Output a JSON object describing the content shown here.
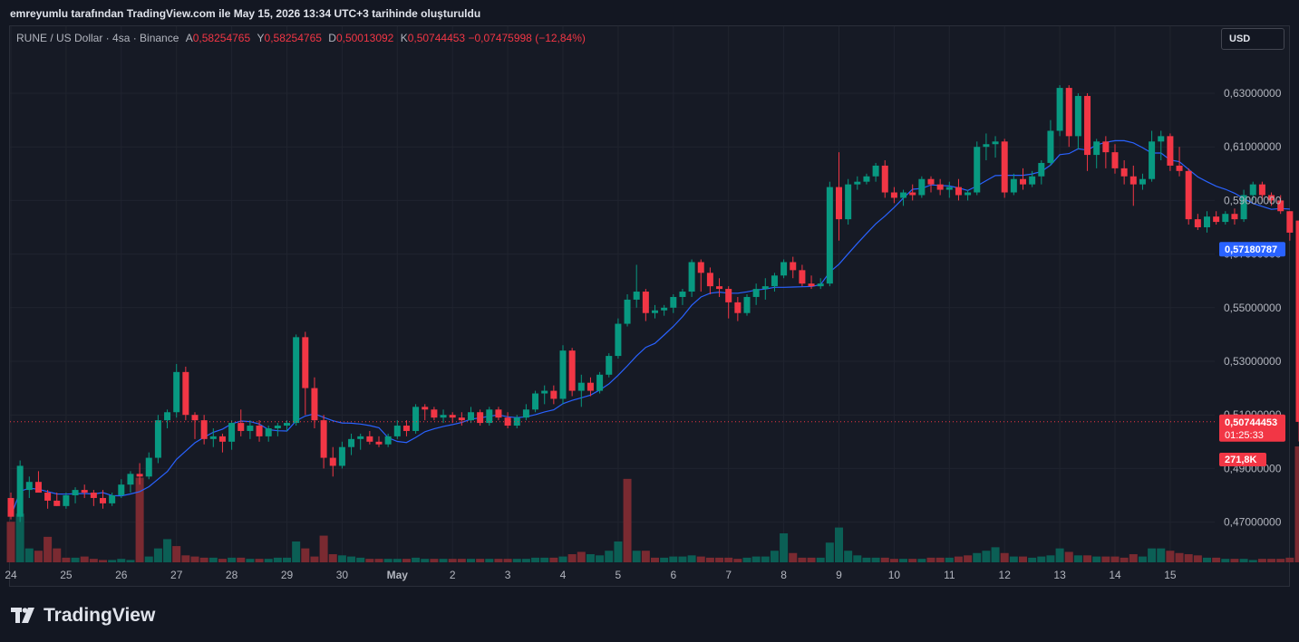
{
  "header": {
    "title": "emreyumlu tarafından TradingView.com ile May 15, 2026 13:34 UTC+3 tarihinde oluşturuldu"
  },
  "legend": {
    "symbol": "RUNE / US Dollar · 4sa · Binance",
    "open_label": "A",
    "open": "0,58254765",
    "high_label": "Y",
    "high": "0,58254765",
    "low_label": "D",
    "low": "0,50013092",
    "close_label": "K",
    "close": "0,50744453",
    "change": "−0,07475998 (−12,84%)"
  },
  "currency_button": {
    "label": "USD"
  },
  "price_badges": {
    "ma_value": "0,57180787",
    "last_price": "0,50744453",
    "countdown": "01:25:33",
    "volume": "271,8K"
  },
  "brand": {
    "name": "TradingView"
  },
  "colors": {
    "up": "#089981",
    "down": "#f23645",
    "ma": "#2962ff",
    "background": "#161a25"
  },
  "chart_data": {
    "type": "candlestick",
    "y_axis": {
      "range": [
        0.455,
        0.655
      ],
      "ticks": [
        0.47,
        0.49,
        0.51,
        0.53,
        0.55,
        0.57,
        0.59,
        0.61,
        0.63
      ],
      "tick_labels": [
        "0,47000000",
        "0,49000000",
        "0,51000000",
        "0,53000000",
        "0,55000000",
        "0,57000000",
        "0,59000000",
        "0,61000000",
        "0,63000000"
      ]
    },
    "x_axis": {
      "tick_labels": [
        "24",
        "25",
        "26",
        "27",
        "28",
        "29",
        "30",
        "May",
        "2",
        "3",
        "4",
        "5",
        "6",
        "7",
        "8",
        "9",
        "10",
        "11",
        "12",
        "13",
        "14",
        "15"
      ]
    },
    "candles_per_day": 6,
    "last_price_line": 0.50744453,
    "ohlc": [
      [
        0.479,
        0.481,
        0.471,
        0.472
      ],
      [
        0.472,
        0.493,
        0.47,
        0.491
      ],
      [
        0.482,
        0.487,
        0.479,
        0.485
      ],
      [
        0.485,
        0.489,
        0.482,
        0.481
      ],
      [
        0.481,
        0.482,
        0.475,
        0.478
      ],
      [
        0.478,
        0.481,
        0.476,
        0.476
      ],
      [
        0.476,
        0.481,
        0.475,
        0.48
      ],
      [
        0.48,
        0.483,
        0.477,
        0.482
      ],
      [
        0.482,
        0.484,
        0.479,
        0.481
      ],
      [
        0.481,
        0.482,
        0.476,
        0.479
      ],
      [
        0.479,
        0.482,
        0.475,
        0.477
      ],
      [
        0.477,
        0.481,
        0.476,
        0.48
      ],
      [
        0.48,
        0.486,
        0.479,
        0.484
      ],
      [
        0.484,
        0.489,
        0.481,
        0.488
      ],
      [
        0.488,
        0.492,
        0.484,
        0.487
      ],
      [
        0.487,
        0.496,
        0.486,
        0.494
      ],
      [
        0.494,
        0.51,
        0.492,
        0.508
      ],
      [
        0.508,
        0.512,
        0.505,
        0.511
      ],
      [
        0.511,
        0.529,
        0.509,
        0.526
      ],
      [
        0.526,
        0.528,
        0.508,
        0.51
      ],
      [
        0.51,
        0.511,
        0.501,
        0.508
      ],
      [
        0.508,
        0.51,
        0.499,
        0.501
      ],
      [
        0.501,
        0.505,
        0.498,
        0.502
      ],
      [
        0.502,
        0.503,
        0.496,
        0.5
      ],
      [
        0.5,
        0.508,
        0.497,
        0.507
      ],
      [
        0.507,
        0.512,
        0.502,
        0.504
      ],
      [
        0.504,
        0.508,
        0.501,
        0.506
      ],
      [
        0.506,
        0.508,
        0.5,
        0.502
      ],
      [
        0.502,
        0.506,
        0.5,
        0.505
      ],
      [
        0.505,
        0.507,
        0.502,
        0.506
      ],
      [
        0.506,
        0.508,
        0.504,
        0.507
      ],
      [
        0.507,
        0.54,
        0.506,
        0.539
      ],
      [
        0.539,
        0.541,
        0.51,
        0.52
      ],
      [
        0.52,
        0.524,
        0.505,
        0.508
      ],
      [
        0.508,
        0.51,
        0.49,
        0.494
      ],
      [
        0.494,
        0.498,
        0.487,
        0.491
      ],
      [
        0.491,
        0.5,
        0.49,
        0.498
      ],
      [
        0.498,
        0.503,
        0.495,
        0.501
      ],
      [
        0.501,
        0.503,
        0.497,
        0.502
      ],
      [
        0.502,
        0.504,
        0.499,
        0.5
      ],
      [
        0.5,
        0.502,
        0.498,
        0.499
      ],
      [
        0.499,
        0.503,
        0.498,
        0.502
      ],
      [
        0.502,
        0.508,
        0.501,
        0.506
      ],
      [
        0.506,
        0.508,
        0.502,
        0.504
      ],
      [
        0.504,
        0.514,
        0.503,
        0.513
      ],
      [
        0.513,
        0.514,
        0.508,
        0.512
      ],
      [
        0.512,
        0.513,
        0.508,
        0.509
      ],
      [
        0.509,
        0.512,
        0.507,
        0.51
      ],
      [
        0.51,
        0.511,
        0.507,
        0.509
      ],
      [
        0.509,
        0.511,
        0.506,
        0.508
      ],
      [
        0.508,
        0.513,
        0.507,
        0.511
      ],
      [
        0.511,
        0.512,
        0.506,
        0.507
      ],
      [
        0.507,
        0.513,
        0.506,
        0.512
      ],
      [
        0.512,
        0.513,
        0.508,
        0.509
      ],
      [
        0.509,
        0.511,
        0.505,
        0.506
      ],
      [
        0.506,
        0.51,
        0.505,
        0.509
      ],
      [
        0.509,
        0.514,
        0.508,
        0.512
      ],
      [
        0.512,
        0.519,
        0.511,
        0.518
      ],
      [
        0.518,
        0.521,
        0.514,
        0.519
      ],
      [
        0.519,
        0.521,
        0.514,
        0.516
      ],
      [
        0.516,
        0.536,
        0.514,
        0.534
      ],
      [
        0.534,
        0.535,
        0.517,
        0.519
      ],
      [
        0.519,
        0.525,
        0.513,
        0.522
      ],
      [
        0.522,
        0.524,
        0.517,
        0.519
      ],
      [
        0.519,
        0.526,
        0.518,
        0.525
      ],
      [
        0.525,
        0.533,
        0.524,
        0.532
      ],
      [
        0.532,
        0.546,
        0.531,
        0.544
      ],
      [
        0.544,
        0.555,
        0.543,
        0.553
      ],
      [
        0.553,
        0.566,
        0.55,
        0.556
      ],
      [
        0.556,
        0.557,
        0.545,
        0.548
      ],
      [
        0.548,
        0.551,
        0.546,
        0.549
      ],
      [
        0.549,
        0.551,
        0.547,
        0.55
      ],
      [
        0.55,
        0.555,
        0.548,
        0.554
      ],
      [
        0.554,
        0.557,
        0.551,
        0.556
      ],
      [
        0.556,
        0.568,
        0.554,
        0.567
      ],
      [
        0.567,
        0.568,
        0.556,
        0.563
      ],
      [
        0.563,
        0.565,
        0.555,
        0.558
      ],
      [
        0.558,
        0.561,
        0.554,
        0.557
      ],
      [
        0.557,
        0.558,
        0.546,
        0.552
      ],
      [
        0.552,
        0.554,
        0.545,
        0.548
      ],
      [
        0.548,
        0.555,
        0.547,
        0.554
      ],
      [
        0.554,
        0.559,
        0.551,
        0.557
      ],
      [
        0.557,
        0.561,
        0.553,
        0.558
      ],
      [
        0.558,
        0.563,
        0.556,
        0.562
      ],
      [
        0.562,
        0.568,
        0.561,
        0.567
      ],
      [
        0.567,
        0.569,
        0.561,
        0.564
      ],
      [
        0.564,
        0.566,
        0.558,
        0.559
      ],
      [
        0.559,
        0.562,
        0.557,
        0.558
      ],
      [
        0.558,
        0.561,
        0.557,
        0.559
      ],
      [
        0.559,
        0.597,
        0.558,
        0.595
      ],
      [
        0.595,
        0.608,
        0.575,
        0.583
      ],
      [
        0.583,
        0.598,
        0.581,
        0.596
      ],
      [
        0.596,
        0.599,
        0.594,
        0.597
      ],
      [
        0.597,
        0.6,
        0.596,
        0.599
      ],
      [
        0.599,
        0.604,
        0.597,
        0.603
      ],
      [
        0.603,
        0.605,
        0.591,
        0.593
      ],
      [
        0.593,
        0.595,
        0.589,
        0.591
      ],
      [
        0.591,
        0.594,
        0.588,
        0.593
      ],
      [
        0.593,
        0.596,
        0.59,
        0.592
      ],
      [
        0.592,
        0.599,
        0.591,
        0.598
      ],
      [
        0.598,
        0.599,
        0.593,
        0.596
      ],
      [
        0.596,
        0.598,
        0.592,
        0.594
      ],
      [
        0.594,
        0.597,
        0.591,
        0.595
      ],
      [
        0.595,
        0.598,
        0.59,
        0.592
      ],
      [
        0.592,
        0.594,
        0.59,
        0.593
      ],
      [
        0.593,
        0.612,
        0.592,
        0.61
      ],
      [
        0.61,
        0.615,
        0.605,
        0.611
      ],
      [
        0.611,
        0.614,
        0.606,
        0.612
      ],
      [
        0.612,
        0.613,
        0.591,
        0.593
      ],
      [
        0.593,
        0.6,
        0.592,
        0.598
      ],
      [
        0.598,
        0.602,
        0.594,
        0.596
      ],
      [
        0.596,
        0.601,
        0.595,
        0.599
      ],
      [
        0.599,
        0.605,
        0.596,
        0.604
      ],
      [
        0.604,
        0.62,
        0.603,
        0.616
      ],
      [
        0.616,
        0.633,
        0.614,
        0.632
      ],
      [
        0.632,
        0.633,
        0.61,
        0.614
      ],
      [
        0.614,
        0.63,
        0.609,
        0.629
      ],
      [
        0.629,
        0.63,
        0.601,
        0.607
      ],
      [
        0.607,
        0.613,
        0.602,
        0.612
      ],
      [
        0.612,
        0.614,
        0.602,
        0.608
      ],
      [
        0.608,
        0.611,
        0.6,
        0.602
      ],
      [
        0.602,
        0.605,
        0.596,
        0.599
      ],
      [
        0.599,
        0.603,
        0.588,
        0.596
      ],
      [
        0.596,
        0.6,
        0.594,
        0.598
      ],
      [
        0.598,
        0.616,
        0.597,
        0.612
      ],
      [
        0.612,
        0.616,
        0.605,
        0.614
      ],
      [
        0.614,
        0.615,
        0.601,
        0.603
      ],
      [
        0.603,
        0.61,
        0.599,
        0.601
      ],
      [
        0.601,
        0.602,
        0.581,
        0.583
      ],
      [
        0.583,
        0.585,
        0.579,
        0.58
      ],
      [
        0.58,
        0.586,
        0.578,
        0.584
      ],
      [
        0.584,
        0.586,
        0.581,
        0.582
      ],
      [
        0.582,
        0.586,
        0.581,
        0.585
      ],
      [
        0.585,
        0.587,
        0.581,
        0.583
      ],
      [
        0.583,
        0.594,
        0.582,
        0.592
      ],
      [
        0.592,
        0.597,
        0.59,
        0.596
      ],
      [
        0.596,
        0.597,
        0.59,
        0.592
      ],
      [
        0.592,
        0.593,
        0.588,
        0.59
      ],
      [
        0.59,
        0.592,
        0.585,
        0.586
      ],
      [
        0.586,
        0.586,
        0.575,
        0.578
      ],
      [
        0.5825,
        0.5825,
        0.5001,
        0.5074
      ]
    ],
    "volume_bars": [
      [
        0.35,
        "down"
      ],
      [
        0.42,
        "up"
      ],
      [
        0.12,
        "up"
      ],
      [
        0.1,
        "down"
      ],
      [
        0.22,
        "down"
      ],
      [
        0.12,
        "down"
      ],
      [
        0.04,
        "down"
      ],
      [
        0.04,
        "up"
      ],
      [
        0.05,
        "down"
      ],
      [
        0.03,
        "down"
      ],
      [
        0.02,
        "down"
      ],
      [
        0.02,
        "up"
      ],
      [
        0.03,
        "up"
      ],
      [
        0.02,
        "up"
      ],
      [
        0.73,
        "down"
      ],
      [
        0.05,
        "up"
      ],
      [
        0.12,
        "up"
      ],
      [
        0.2,
        "up"
      ],
      [
        0.14,
        "down"
      ],
      [
        0.06,
        "down"
      ],
      [
        0.05,
        "down"
      ],
      [
        0.04,
        "down"
      ],
      [
        0.04,
        "up"
      ],
      [
        0.03,
        "down"
      ],
      [
        0.04,
        "up"
      ],
      [
        0.04,
        "down"
      ],
      [
        0.03,
        "up"
      ],
      [
        0.03,
        "down"
      ],
      [
        0.03,
        "up"
      ],
      [
        0.04,
        "up"
      ],
      [
        0.04,
        "up"
      ],
      [
        0.18,
        "up"
      ],
      [
        0.12,
        "down"
      ],
      [
        0.05,
        "down"
      ],
      [
        0.23,
        "down"
      ],
      [
        0.07,
        "down"
      ],
      [
        0.06,
        "up"
      ],
      [
        0.05,
        "up"
      ],
      [
        0.04,
        "up"
      ],
      [
        0.03,
        "down"
      ],
      [
        0.03,
        "down"
      ],
      [
        0.03,
        "up"
      ],
      [
        0.03,
        "up"
      ],
      [
        0.03,
        "down"
      ],
      [
        0.04,
        "up"
      ],
      [
        0.03,
        "up"
      ],
      [
        0.03,
        "down"
      ],
      [
        0.03,
        "up"
      ],
      [
        0.03,
        "down"
      ],
      [
        0.03,
        "down"
      ],
      [
        0.03,
        "up"
      ],
      [
        0.03,
        "down"
      ],
      [
        0.03,
        "up"
      ],
      [
        0.03,
        "down"
      ],
      [
        0.03,
        "down"
      ],
      [
        0.03,
        "up"
      ],
      [
        0.03,
        "up"
      ],
      [
        0.04,
        "up"
      ],
      [
        0.04,
        "up"
      ],
      [
        0.04,
        "down"
      ],
      [
        0.05,
        "up"
      ],
      [
        0.07,
        "down"
      ],
      [
        0.09,
        "down"
      ],
      [
        0.07,
        "up"
      ],
      [
        0.06,
        "up"
      ],
      [
        0.1,
        "up"
      ],
      [
        0.18,
        "up"
      ],
      [
        0.72,
        "down"
      ],
      [
        0.1,
        "up"
      ],
      [
        0.1,
        "down"
      ],
      [
        0.04,
        "down"
      ],
      [
        0.04,
        "up"
      ],
      [
        0.05,
        "up"
      ],
      [
        0.05,
        "up"
      ],
      [
        0.06,
        "up"
      ],
      [
        0.05,
        "down"
      ],
      [
        0.04,
        "down"
      ],
      [
        0.04,
        "down"
      ],
      [
        0.04,
        "down"
      ],
      [
        0.03,
        "down"
      ],
      [
        0.04,
        "up"
      ],
      [
        0.05,
        "up"
      ],
      [
        0.05,
        "up"
      ],
      [
        0.1,
        "up"
      ],
      [
        0.25,
        "up"
      ],
      [
        0.08,
        "down"
      ],
      [
        0.04,
        "down"
      ],
      [
        0.04,
        "down"
      ],
      [
        0.04,
        "up"
      ],
      [
        0.17,
        "up"
      ],
      [
        0.3,
        "up"
      ],
      [
        0.1,
        "up"
      ],
      [
        0.06,
        "up"
      ],
      [
        0.04,
        "up"
      ],
      [
        0.04,
        "up"
      ],
      [
        0.04,
        "down"
      ],
      [
        0.03,
        "down"
      ],
      [
        0.03,
        "up"
      ],
      [
        0.03,
        "down"
      ],
      [
        0.03,
        "up"
      ],
      [
        0.04,
        "down"
      ],
      [
        0.04,
        "down"
      ],
      [
        0.04,
        "up"
      ],
      [
        0.05,
        "down"
      ],
      [
        0.06,
        "down"
      ],
      [
        0.08,
        "up"
      ],
      [
        0.1,
        "up"
      ],
      [
        0.13,
        "up"
      ],
      [
        0.08,
        "down"
      ],
      [
        0.05,
        "up"
      ],
      [
        0.05,
        "down"
      ],
      [
        0.04,
        "up"
      ],
      [
        0.05,
        "up"
      ],
      [
        0.06,
        "up"
      ],
      [
        0.12,
        "up"
      ],
      [
        0.09,
        "down"
      ],
      [
        0.06,
        "up"
      ],
      [
        0.06,
        "down"
      ],
      [
        0.05,
        "up"
      ],
      [
        0.05,
        "down"
      ],
      [
        0.05,
        "down"
      ],
      [
        0.04,
        "down"
      ],
      [
        0.07,
        "down"
      ],
      [
        0.05,
        "up"
      ],
      [
        0.12,
        "up"
      ],
      [
        0.12,
        "up"
      ],
      [
        0.1,
        "down"
      ],
      [
        0.08,
        "down"
      ],
      [
        0.07,
        "down"
      ],
      [
        0.06,
        "down"
      ],
      [
        0.04,
        "up"
      ],
      [
        0.04,
        "down"
      ],
      [
        0.03,
        "up"
      ],
      [
        0.03,
        "down"
      ],
      [
        0.03,
        "up"
      ],
      [
        0.02,
        "up"
      ],
      [
        0.03,
        "down"
      ],
      [
        0.03,
        "down"
      ],
      [
        0.03,
        "down"
      ],
      [
        0.04,
        "down"
      ],
      [
        1.0,
        "down"
      ]
    ],
    "volume_max": 271.8
  }
}
